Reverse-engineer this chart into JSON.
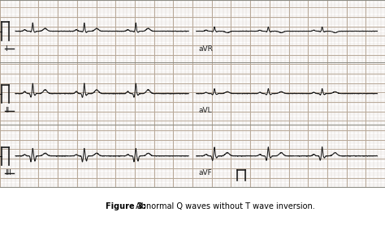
{
  "title_bold": "Figure 3:",
  "title_regular": " Abnormal Q waves without T wave inversion.",
  "bg_color": "#f8f6f2",
  "grid_minor_color": "#d4c8c0",
  "grid_major_color": "#b8a898",
  "ecg_color": "#1a1a1a",
  "label_color": "#1a1a1a",
  "border_color": "#888880",
  "caption_bg": "#ffffff",
  "fig_width": 4.74,
  "fig_height": 2.78,
  "dpi": 100,
  "row_labels_left": [
    "I",
    "II",
    "III"
  ],
  "row_labels_right": [
    "aVR",
    "aVL",
    "aVF"
  ]
}
